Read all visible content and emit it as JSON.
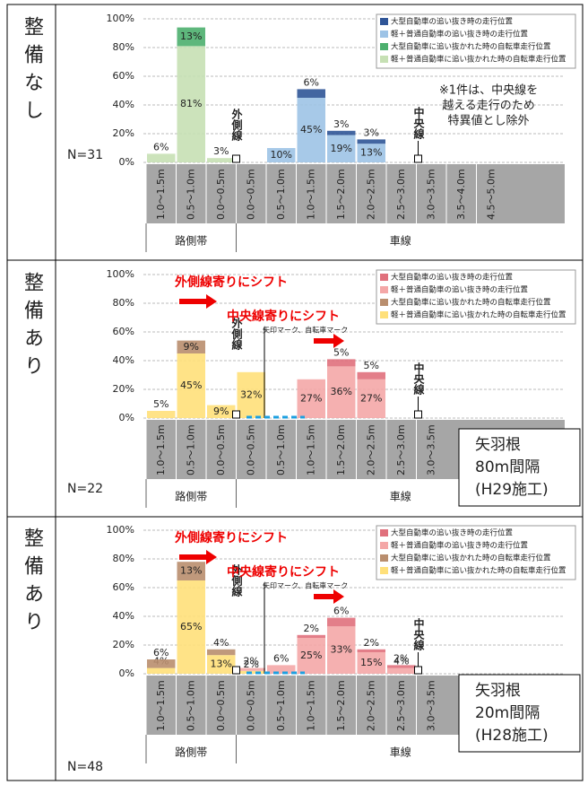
{
  "chart_data": [
    {
      "type": "bar",
      "stacked": true,
      "side_label": "整備なし",
      "n_label": "N=31",
      "categories": [
        "1.0～1.5m",
        "0.5～1.0m",
        "0.0～0.5m",
        "0.0～0.5m",
        "0.5～1.0m",
        "1.0～1.5m",
        "1.5～2.0m",
        "2.0～2.5m",
        "2.5～3.0m",
        "3.0～3.5m",
        "3.5～4.0m",
        "4.5～5.0m"
      ],
      "group_labels": [
        "路側帯",
        "車線"
      ],
      "series": [
        {
          "name": "大型自動車の追い抜き時の走行位置",
          "color": "#2f5597",
          "values": [
            null,
            null,
            null,
            null,
            null,
            6,
            3,
            3,
            null,
            null,
            null,
            null
          ],
          "value_labels": [
            null,
            null,
            null,
            null,
            null,
            "6%",
            "3%",
            "3%",
            null,
            null,
            null,
            null
          ]
        },
        {
          "name": "軽＋普通自動車の追い抜き時の走行位置",
          "color": "#9dc3e6",
          "values": [
            null,
            null,
            null,
            null,
            10,
            45,
            19,
            13,
            null,
            null,
            null,
            null
          ],
          "value_labels": [
            null,
            null,
            null,
            null,
            "10%",
            "45%",
            "19%",
            "13%",
            null,
            null,
            null,
            null
          ]
        },
        {
          "name": "大型自動車に追い抜かれた時の自転車走行位置",
          "color": "#4caf6e",
          "values": [
            null,
            13,
            null,
            null,
            null,
            null,
            null,
            null,
            null,
            null,
            null,
            null
          ],
          "value_labels": [
            null,
            "13%",
            null,
            null,
            null,
            null,
            null,
            null,
            null,
            null,
            null,
            null
          ]
        },
        {
          "name": "軽＋普通自動車に追い抜かれた時の自転車走行位置",
          "color": "#c6e0b4",
          "values": [
            6,
            81,
            3,
            null,
            null,
            null,
            null,
            null,
            null,
            null,
            null,
            null
          ],
          "value_labels": [
            "6%",
            "81%",
            "3%",
            null,
            null,
            null,
            null,
            null,
            null,
            null,
            null,
            null
          ]
        }
      ],
      "ylim": [
        0,
        100
      ],
      "yticks": [
        {
          "value": 0,
          "label": "0%"
        },
        {
          "value": 20,
          "label": "20%"
        },
        {
          "value": 40,
          "label": "40%"
        },
        {
          "value": 60,
          "label": "60%"
        },
        {
          "value": 80,
          "label": "80%"
        },
        {
          "value": 100,
          "label": "100%"
        }
      ],
      "grid": true,
      "legend": "top-right",
      "line_labels": [
        "外側線",
        "中央線"
      ],
      "note": [
        "※1件は、中央線を",
        "越える走行のため",
        "特異値とし除外"
      ]
    },
    {
      "type": "bar",
      "stacked": true,
      "side_label": "整備あり",
      "n_label": "N=22",
      "categories": [
        "1.0～1.5m",
        "0.5～1.0m",
        "0.0～0.5m",
        "0.0～0.5m",
        "0.5～1.0m",
        "1.0～1.5m",
        "1.5～2.0m",
        "2.0～2.5m",
        "2.5～3.0m",
        "3.0～3.5m"
      ],
      "group_labels": [
        "路側帯",
        "車線"
      ],
      "series": [
        {
          "name": "大型自動車の追い抜き時の走行位置",
          "color": "#e0707c",
          "values": [
            null,
            null,
            null,
            null,
            null,
            null,
            5,
            5,
            null,
            null
          ],
          "value_labels": [
            null,
            null,
            null,
            null,
            null,
            null,
            "5%",
            "5%",
            null,
            null
          ]
        },
        {
          "name": "軽＋普通自動車の追い抜き時の走行位置",
          "color": "#f4a7a7",
          "values": [
            null,
            null,
            null,
            null,
            null,
            27,
            36,
            27,
            null,
            null
          ],
          "value_labels": [
            null,
            null,
            null,
            null,
            null,
            "27%",
            "36%",
            "27%",
            null,
            null
          ]
        },
        {
          "name": "大型自動車に追い抜かれた時の自転車走行位置",
          "color": "#b98e6e",
          "values": [
            null,
            9,
            null,
            null,
            null,
            null,
            null,
            null,
            null,
            null
          ],
          "value_labels": [
            null,
            "9%",
            null,
            null,
            null,
            null,
            null,
            null,
            null,
            null
          ]
        },
        {
          "name": "軽＋普通自動車に追い抜かれた時の自転車走行位置",
          "color": "#ffe07a",
          "values": [
            5,
            45,
            9,
            32,
            null,
            null,
            null,
            null,
            null,
            null
          ],
          "value_labels": [
            "5%",
            "45%",
            "9%",
            "32%",
            null,
            null,
            null,
            null,
            null,
            null
          ]
        }
      ],
      "ylim": [
        0,
        100
      ],
      "yticks": [
        {
          "value": 0,
          "label": "0%"
        },
        {
          "value": 20,
          "label": "20%"
        },
        {
          "value": 40,
          "label": "40%"
        },
        {
          "value": 60,
          "label": "60%"
        },
        {
          "value": 80,
          "label": "80%"
        },
        {
          "value": 100,
          "label": "100%"
        }
      ],
      "grid": true,
      "legend": "top-right",
      "line_labels": [
        "外側線",
        "中央線"
      ],
      "shift_labels": [
        "外側線寄りにシフト",
        "中央線寄りにシフト"
      ],
      "marker_label": "矢印マーク、自転車マーク",
      "box_text": [
        "矢羽根",
        "80m間隔",
        "(H29施工)"
      ]
    },
    {
      "type": "bar",
      "stacked": true,
      "side_label": "整備あり",
      "n_label": "N=48",
      "categories": [
        "1.0～1.5m",
        "0.5～1.0m",
        "0.0～0.5m",
        "0.0～0.5m",
        "0.5～1.0m",
        "1.0～1.5m",
        "1.5～2.0m",
        "2.0～2.5m",
        "2.5～3.0m",
        "3.0～3.5m"
      ],
      "group_labels": [
        "路側帯",
        "車線"
      ],
      "series": [
        {
          "name": "大型自動車の追い抜き時の走行位置",
          "color": "#e0707c",
          "values": [
            null,
            null,
            null,
            null,
            null,
            2,
            6,
            2,
            2,
            null
          ],
          "value_labels": [
            null,
            null,
            null,
            null,
            null,
            "2%",
            "6%",
            "2%",
            "2%",
            null
          ]
        },
        {
          "name": "軽＋普通自動車の追い抜き時の走行位置",
          "color": "#f4a7a7",
          "values": [
            null,
            null,
            null,
            2,
            6,
            25,
            33,
            15,
            4,
            null
          ],
          "value_labels": [
            null,
            null,
            null,
            "2%",
            "6%",
            "25%",
            "33%",
            "15%",
            "4%",
            null
          ]
        },
        {
          "name": "大型自動車に追い抜かれた時の自転車走行位置",
          "color": "#b98e6e",
          "values": [
            6,
            13,
            4,
            null,
            null,
            null,
            null,
            null,
            null,
            null
          ],
          "value_labels": [
            "6%",
            "13%",
            "4%",
            null,
            null,
            null,
            null,
            null,
            null,
            null
          ]
        },
        {
          "name": "軽＋普通自動車に追い抜かれた時の自転車走行位置",
          "color": "#ffe07a",
          "values": [
            4,
            65,
            13,
            2,
            null,
            null,
            null,
            null,
            null,
            null
          ],
          "value_labels": [
            "4%",
            "65%",
            "13%",
            "2%",
            null,
            null,
            null,
            null,
            null,
            null
          ]
        }
      ],
      "ylim": [
        0,
        100
      ],
      "yticks": [
        {
          "value": 0,
          "label": "0%"
        },
        {
          "value": 20,
          "label": "20%"
        },
        {
          "value": 40,
          "label": "40%"
        },
        {
          "value": 60,
          "label": "60%"
        },
        {
          "value": 80,
          "label": "80%"
        },
        {
          "value": 100,
          "label": "100%"
        }
      ],
      "grid": true,
      "legend": "top-right",
      "line_labels": [
        "外側線",
        "中央線"
      ],
      "shift_labels": [
        "外側線寄りにシフト",
        "中央線寄りにシフト"
      ],
      "marker_label": "矢印マーク、自転車マーク",
      "box_text": [
        "矢羽根",
        "20m間隔",
        "(H28施工)"
      ]
    }
  ]
}
